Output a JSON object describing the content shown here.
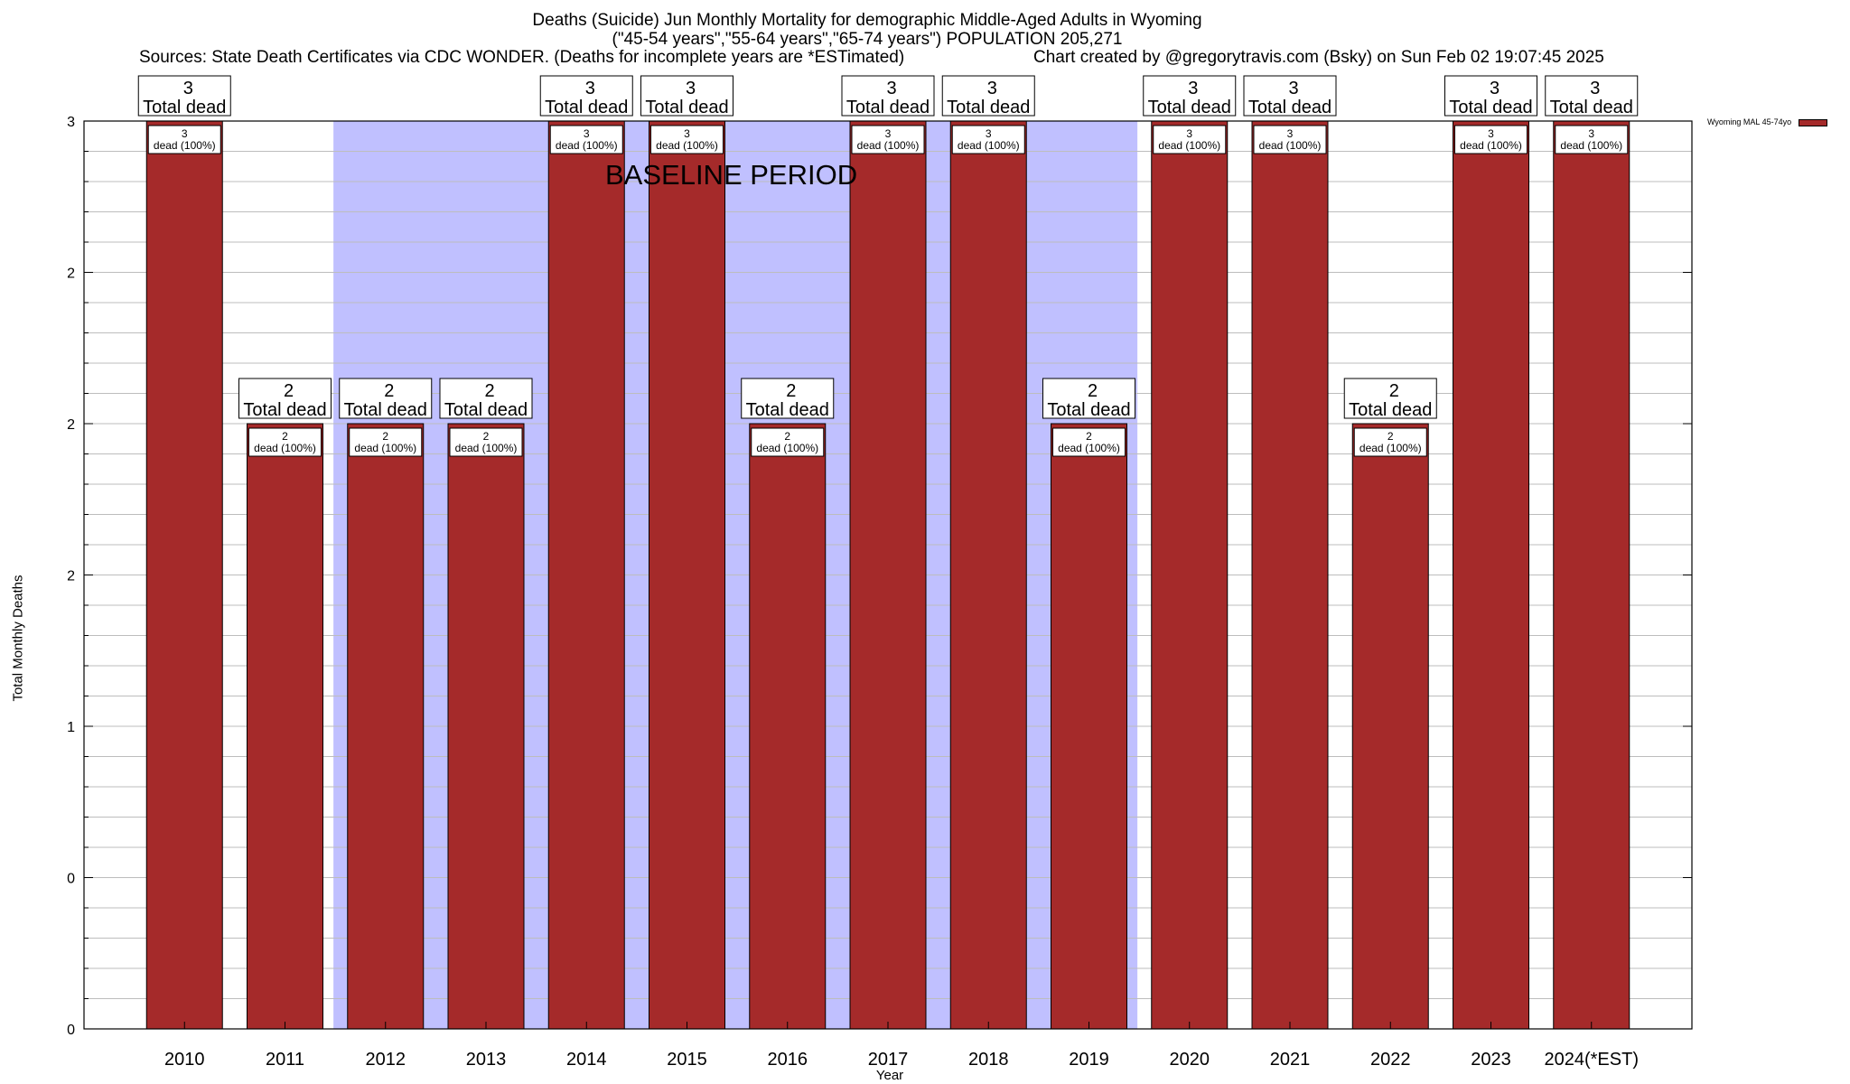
{
  "chart_data": {
    "type": "bar",
    "title": "Deaths (Suicide) Jun Monthly Mortality for demographic Middle-Aged Adults in Wyoming",
    "subtitle": "(\"45-54 years\",\"55-64 years\",\"65-74 years\") POPULATION 205,271",
    "sources": "Sources: State Death Certificates via CDC WONDER. (Deaths for incomplete years are *ESTimated)",
    "credit": "Chart created by @gregorytravis.com (Bsky) on Sun Feb 02 19:07:45 2025",
    "xlabel": "Year",
    "ylabel": "Total Monthly Deaths",
    "categories": [
      "2010",
      "2011",
      "2012",
      "2013",
      "2014",
      "2015",
      "2016",
      "2017",
      "2018",
      "2019",
      "2020",
      "2021",
      "2022",
      "2023",
      "2024(*EST)"
    ],
    "series": [
      {
        "name": "Wyoming MAL 45-74yo",
        "color": "#a52a2a",
        "values": [
          3,
          2,
          2,
          2,
          3,
          3,
          2,
          3,
          3,
          2,
          3,
          3,
          2,
          3,
          3
        ]
      }
    ],
    "ylim": [
      0,
      3
    ],
    "y_tick_labels": [
      "0",
      "0",
      "1",
      "2",
      "2",
      "2",
      "3"
    ],
    "total_label_text": "Total dead",
    "inner_label_suffix": "dead (100%)",
    "baseline_period": {
      "label": "BASELINE PERIOD",
      "from": "2012",
      "to": "2019",
      "color": "#c0c0ff"
    },
    "grid": true,
    "legend_position": "top-right"
  }
}
